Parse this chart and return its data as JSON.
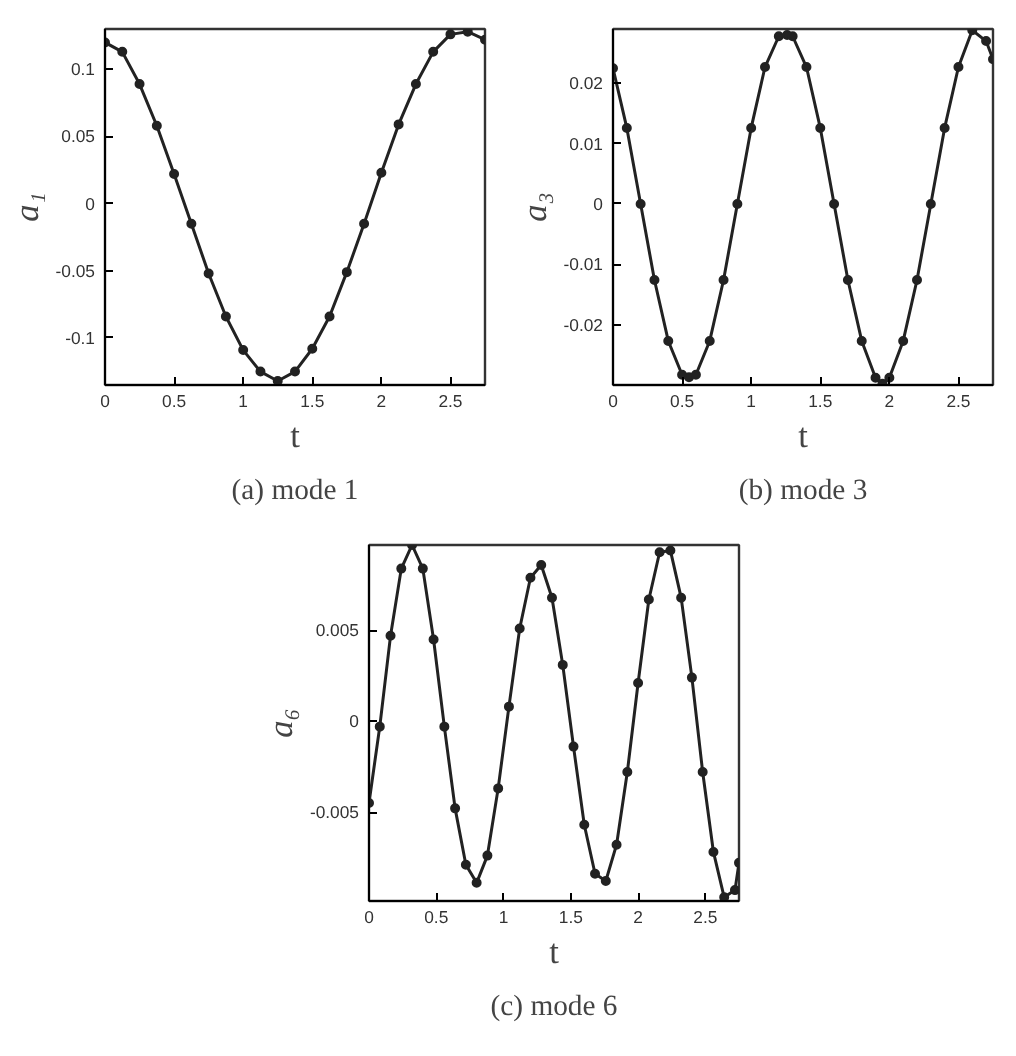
{
  "chart_data": [
    {
      "type": "line",
      "title": "(a) mode 1",
      "xlabel": "t",
      "ylabel": "a₁",
      "color": "#222222",
      "marker": "circle",
      "x": [
        0,
        0.125,
        0.25,
        0.375,
        0.5,
        0.625,
        0.75,
        0.875,
        1.0,
        1.125,
        1.25,
        1.375,
        1.5,
        1.625,
        1.75,
        1.875,
        2.0,
        2.125,
        2.25,
        2.375,
        2.5,
        2.625,
        2.75
      ],
      "values": [
        0.12,
        0.113,
        0.089,
        0.058,
        0.022,
        -0.015,
        -0.052,
        -0.084,
        -0.109,
        -0.125,
        -0.132,
        -0.125,
        -0.108,
        -0.084,
        -0.051,
        -0.015,
        0.023,
        0.059,
        0.089,
        0.113,
        0.126,
        0.128,
        0.122
      ],
      "xlim": [
        0,
        2.75
      ],
      "ylim": [
        -0.135,
        0.13
      ],
      "xticks": [
        0,
        0.5,
        1,
        1.5,
        2,
        2.5
      ],
      "yticks": [
        -0.1,
        -0.05,
        0,
        0.05,
        0.1
      ]
    },
    {
      "type": "line",
      "title": "(b) mode 3",
      "xlabel": "t",
      "ylabel": "a₃",
      "color": "#222222",
      "marker": "circle",
      "x": [
        0,
        0.1,
        0.2,
        0.3,
        0.4,
        0.5,
        0.55,
        0.6,
        0.7,
        0.8,
        0.9,
        1.0,
        1.1,
        1.2,
        1.26,
        1.3,
        1.4,
        1.5,
        1.6,
        1.7,
        1.8,
        1.9,
        1.95,
        2.0,
        2.1,
        2.2,
        2.3,
        2.4,
        2.5,
        2.6,
        2.7,
        2.75
      ],
      "values": [
        0.0225,
        0.0126,
        0,
        -0.0126,
        -0.0227,
        -0.0283,
        -0.0287,
        -0.0283,
        -0.0227,
        -0.0126,
        0,
        0.0126,
        0.0227,
        0.0278,
        0.028,
        0.0278,
        0.0227,
        0.0126,
        0,
        -0.0126,
        -0.0227,
        -0.0288,
        -0.0298,
        -0.0288,
        -0.0227,
        -0.0126,
        0,
        0.0126,
        0.0227,
        0.0288,
        0.027,
        0.024
      ],
      "xlim": [
        0,
        2.75
      ],
      "ylim": [
        -0.03,
        0.029
      ],
      "xticks": [
        0,
        0.5,
        1,
        1.5,
        2,
        2.5
      ],
      "yticks": [
        -0.02,
        -0.01,
        0,
        0.01,
        0.02
      ]
    },
    {
      "type": "line",
      "title": "(c) mode 6",
      "xlabel": "t",
      "ylabel": "a₆",
      "color": "#222222",
      "marker": "circle",
      "x": [
        0,
        0.08,
        0.16,
        0.24,
        0.32,
        0.4,
        0.48,
        0.56,
        0.64,
        0.72,
        0.8,
        0.88,
        0.96,
        1.04,
        1.12,
        1.2,
        1.28,
        1.36,
        1.44,
        1.52,
        1.6,
        1.68,
        1.76,
        1.84,
        1.92,
        2.0,
        2.08,
        2.16,
        2.24,
        2.32,
        2.4,
        2.48,
        2.56,
        2.64,
        2.72,
        2.75
      ],
      "values": [
        -0.0045,
        -0.0003,
        0.0047,
        0.0084,
        0.0097,
        0.0084,
        0.0045,
        -0.0003,
        -0.0048,
        -0.0079,
        -0.0089,
        -0.0074,
        -0.0037,
        0.0008,
        0.0051,
        0.0079,
        0.0086,
        0.0068,
        0.0031,
        -0.0014,
        -0.0057,
        -0.0084,
        -0.0088,
        -0.0068,
        -0.0028,
        0.0021,
        0.0067,
        0.0093,
        0.0094,
        0.0068,
        0.0024,
        -0.0028,
        -0.0072,
        -0.0097,
        -0.0093,
        -0.0078
      ],
      "xlim": [
        0,
        2.75
      ],
      "ylim": [
        -0.0099,
        0.0097
      ],
      "xticks": [
        0,
        0.5,
        1,
        1.5,
        2,
        2.5
      ],
      "yticks": [
        -0.005,
        0,
        0.005
      ]
    }
  ]
}
